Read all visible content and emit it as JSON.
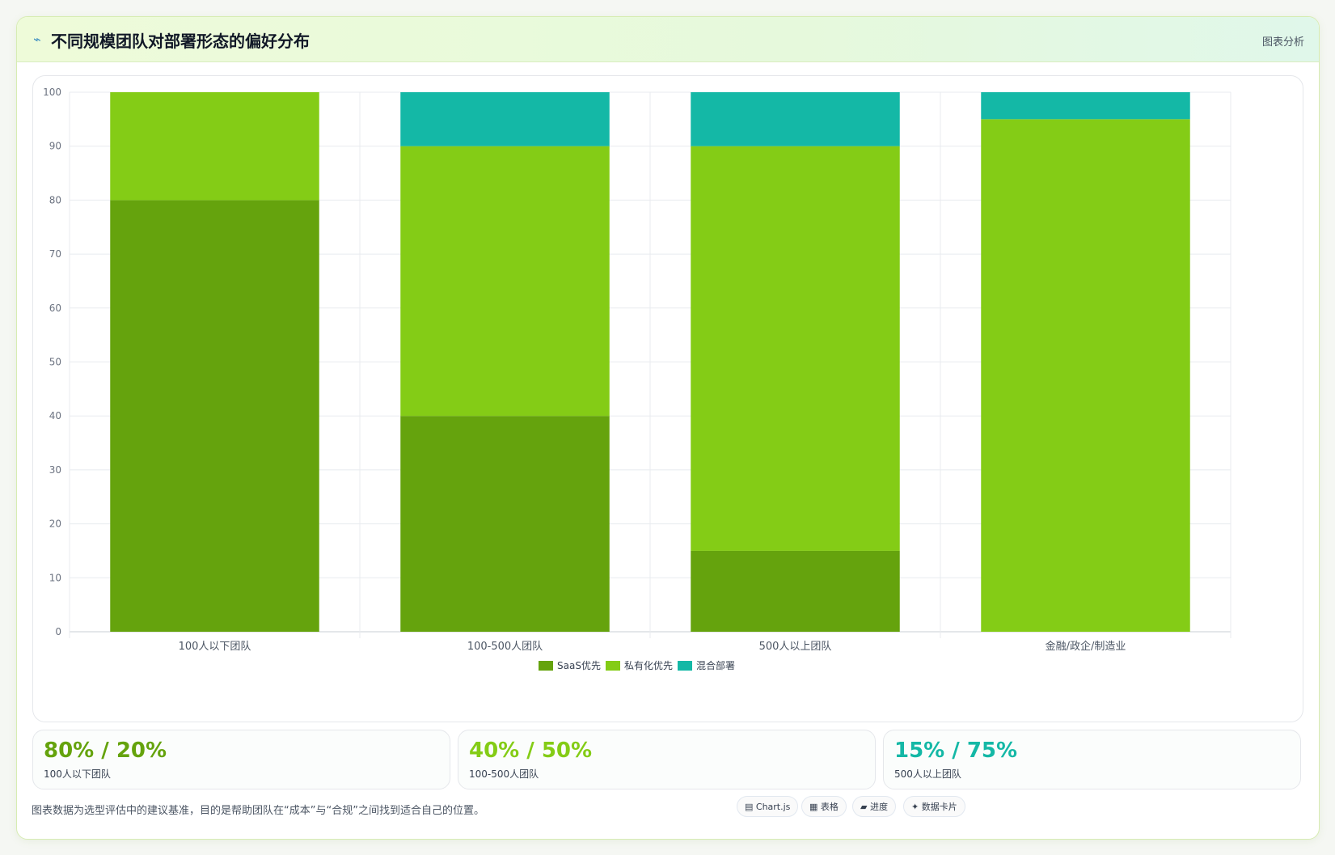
{
  "header": {
    "icon": "chart-line-icon",
    "title": "不同规模团队对部署形态的偏好分布",
    "tag": "图表分析"
  },
  "colors": {
    "saas": "#65a30d",
    "private": "#84cc16",
    "hybrid": "#14b8a6"
  },
  "chart_data": {
    "type": "bar",
    "stacked": true,
    "categories": [
      "100人以下团队",
      "100-500人团队",
      "500人以上团队",
      "金融/政企/制造业"
    ],
    "series": [
      {
        "name": "SaaS优先",
        "values": [
          80,
          40,
          15,
          0
        ]
      },
      {
        "name": "私有化优先",
        "values": [
          20,
          50,
          75,
          95
        ]
      },
      {
        "name": "混合部署",
        "values": [
          0,
          10,
          10,
          5
        ]
      }
    ],
    "ylim": [
      0,
      100
    ],
    "yticks": [
      0,
      10,
      20,
      30,
      40,
      50,
      60,
      70,
      80,
      90,
      100
    ],
    "grid": true,
    "legend": "bottom-center"
  },
  "stats": [
    {
      "value": "80% / 20%",
      "label": "100人以下团队"
    },
    {
      "value": "40% / 50%",
      "label": "100-500人团队"
    },
    {
      "value": "15% / 75%",
      "label": "500人以上团队"
    }
  ],
  "footer": {
    "note": "图表数据为选型评估中的建议基准，目的是帮助团队在“成本”与“合规”之间找到适合自己的位置。",
    "chips": [
      {
        "icon": "chart-icon",
        "label": "Chart.js"
      },
      {
        "icon": "table-icon",
        "label": "表格"
      },
      {
        "icon": "progress-icon",
        "label": "进度"
      },
      {
        "icon": "sparkle-icon",
        "label": "数据卡片"
      }
    ]
  }
}
